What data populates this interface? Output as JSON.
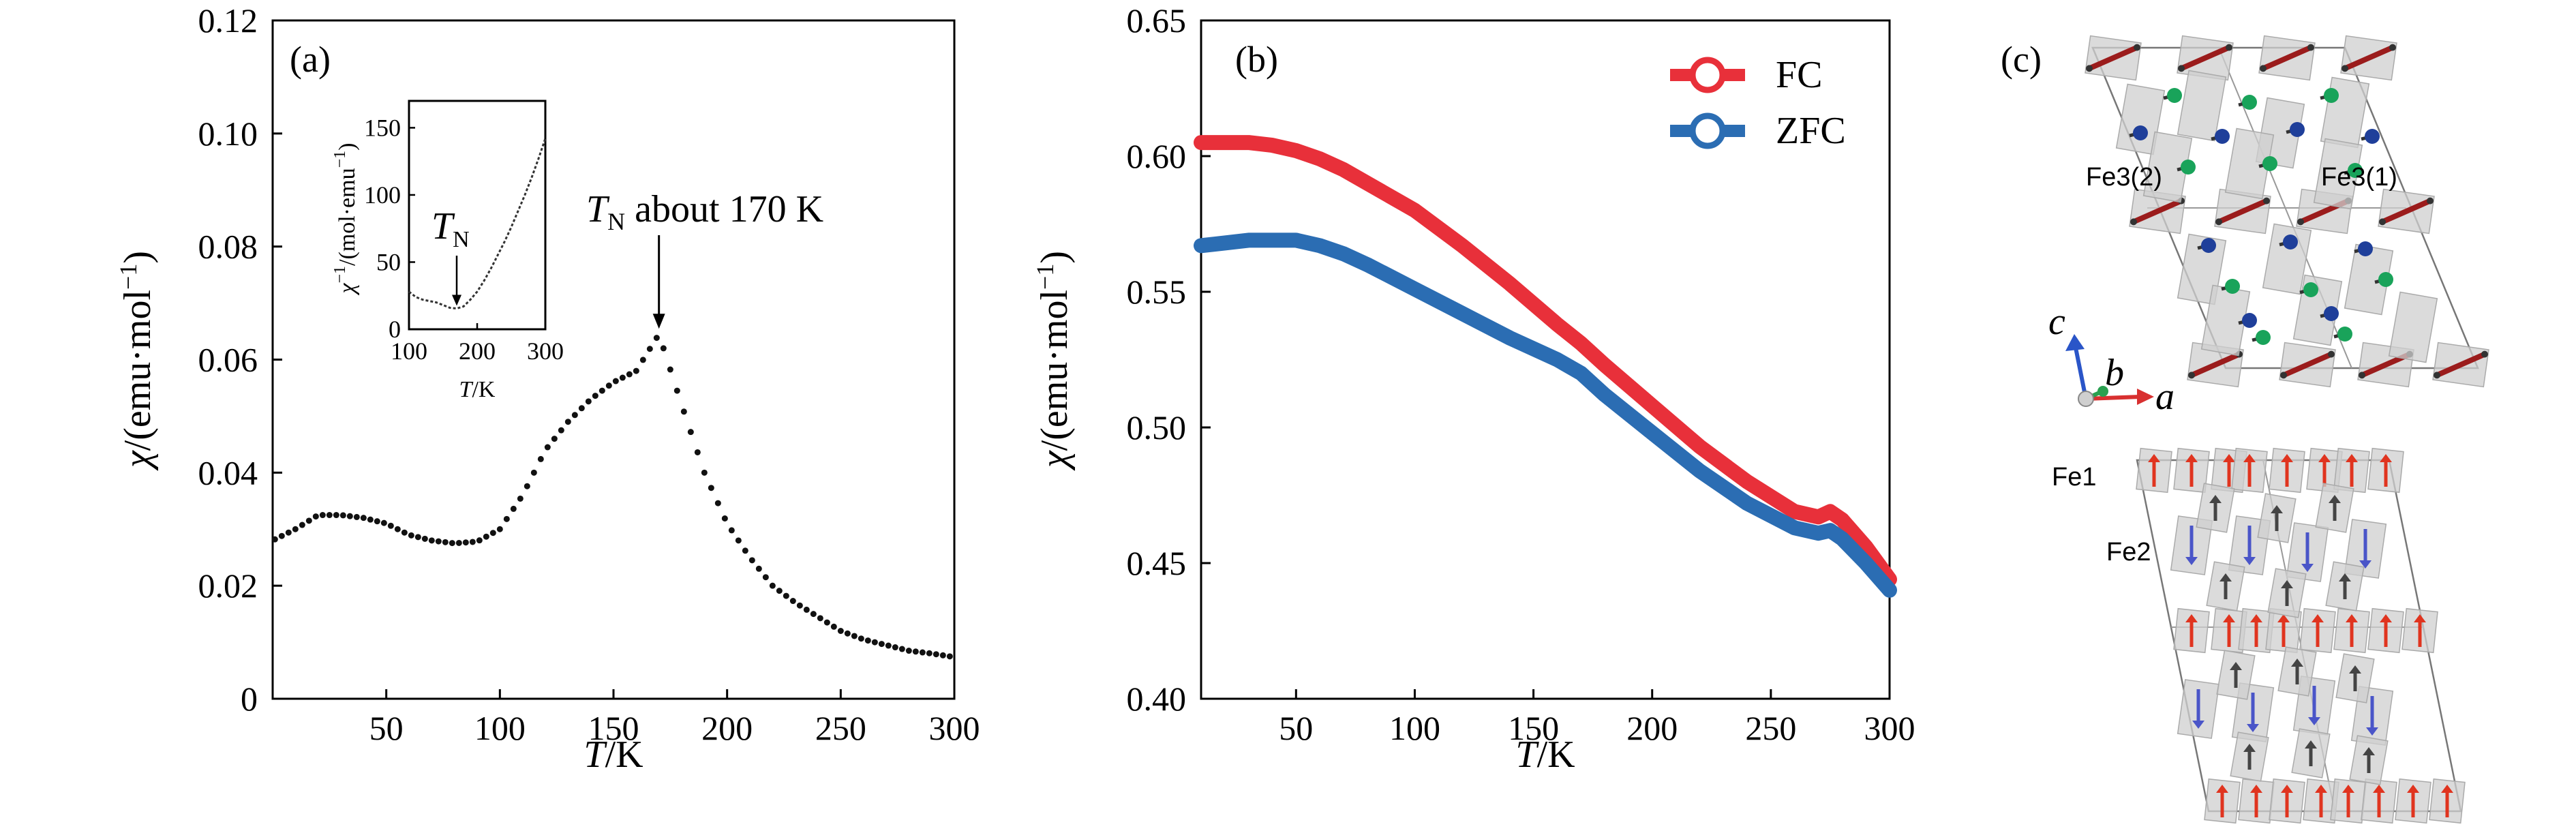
{
  "chart_data": [
    {
      "panel": "(a)",
      "type": "scatter",
      "xlabel": {
        "italic": "T",
        "rest": "/K"
      },
      "ylabel": {
        "italic": "χ",
        "rest": "/(emu·mol",
        "sup": "−1",
        "close": ")"
      },
      "xlim": [
        0,
        300
      ],
      "ylim": [
        0,
        0.12
      ],
      "xticks": [
        50,
        100,
        150,
        200,
        250,
        300
      ],
      "xtick_labels": [
        "50",
        "100",
        "150",
        "200",
        "250",
        "300"
      ],
      "yticks": [
        0,
        0.02,
        0.04,
        0.06,
        0.08,
        0.1,
        0.12
      ],
      "ytick_labels": [
        "0",
        "0.02",
        "0.04",
        "0.06",
        "0.08",
        "0.10",
        "0.12"
      ],
      "marker_color": "#111111",
      "curve_knots": [
        [
          0,
          0.028
        ],
        [
          10,
          0.03
        ],
        [
          20,
          0.0325
        ],
        [
          30,
          0.0325
        ],
        [
          40,
          0.032
        ],
        [
          50,
          0.031
        ],
        [
          60,
          0.029
        ],
        [
          70,
          0.028
        ],
        [
          80,
          0.0275
        ],
        [
          90,
          0.0278
        ],
        [
          100,
          0.03
        ],
        [
          110,
          0.036
        ],
        [
          120,
          0.044
        ],
        [
          130,
          0.049
        ],
        [
          140,
          0.053
        ],
        [
          150,
          0.056
        ],
        [
          160,
          0.058
        ],
        [
          170,
          0.0645
        ],
        [
          180,
          0.052
        ],
        [
          190,
          0.04
        ],
        [
          200,
          0.031
        ],
        [
          210,
          0.025
        ],
        [
          220,
          0.02
        ],
        [
          230,
          0.017
        ],
        [
          240,
          0.0145
        ],
        [
          250,
          0.012
        ],
        [
          260,
          0.0105
        ],
        [
          270,
          0.0095
        ],
        [
          280,
          0.0085
        ],
        [
          290,
          0.008
        ],
        [
          298,
          0.0075
        ]
      ],
      "point_spacing": 3,
      "annotation": {
        "italic": "T",
        "sub": "N",
        "text": " about 170 K",
        "x": 170,
        "y": 0.0645
      },
      "inset": {
        "xlabel": {
          "italic": "T",
          "rest": "/K"
        },
        "ylabel": {
          "italic": "χ",
          "sup": "−1",
          "rest": "/(mol·emu",
          "sup2": "−1",
          "close": ")"
        },
        "xlim": [
          100,
          300
        ],
        "ylim": [
          0,
          170
        ],
        "xticks": [
          100,
          200,
          300
        ],
        "xtick_labels": [
          "100",
          "200",
          "300"
        ],
        "yticks": [
          0,
          50,
          100,
          150
        ],
        "ytick_labels": [
          "0",
          "50",
          "100",
          "150"
        ],
        "curve_knots": [
          [
            100,
            28
          ],
          [
            110,
            24
          ],
          [
            120,
            22
          ],
          [
            130,
            21
          ],
          [
            140,
            20
          ],
          [
            150,
            18
          ],
          [
            160,
            16
          ],
          [
            170,
            15.5
          ],
          [
            180,
            17
          ],
          [
            190,
            22
          ],
          [
            200,
            28
          ],
          [
            210,
            36
          ],
          [
            220,
            45
          ],
          [
            230,
            55
          ],
          [
            240,
            65
          ],
          [
            250,
            76
          ],
          [
            260,
            88
          ],
          [
            270,
            100
          ],
          [
            280,
            113
          ],
          [
            290,
            127
          ],
          [
            300,
            142
          ]
        ],
        "annotation": {
          "italic": "T",
          "sub": "N",
          "x": 170,
          "y": 15.5
        }
      }
    },
    {
      "panel": "(b)",
      "type": "line",
      "xlabel": {
        "italic": "T",
        "rest": "/K"
      },
      "ylabel": {
        "italic": "χ",
        "rest": "/(emu·mol",
        "sup": "−1",
        "close": ")"
      },
      "xlim": [
        10,
        300
      ],
      "ylim": [
        0.4,
        0.65
      ],
      "xticks": [
        50,
        100,
        150,
        200,
        250,
        300
      ],
      "xtick_labels": [
        "50",
        "100",
        "150",
        "200",
        "250",
        "300"
      ],
      "yticks": [
        0.4,
        0.45,
        0.5,
        0.55,
        0.6,
        0.65
      ],
      "ytick_labels": [
        "0.40",
        "0.45",
        "0.50",
        "0.55",
        "0.60",
        "0.65"
      ],
      "legend_position": "top-right",
      "series": [
        {
          "name": "FC",
          "color": "#e8303a",
          "x": [
            10,
            20,
            30,
            40,
            50,
            60,
            70,
            80,
            100,
            120,
            140,
            160,
            170,
            180,
            200,
            220,
            240,
            260,
            270,
            275,
            280,
            290,
            300
          ],
          "y": [
            0.605,
            0.605,
            0.605,
            0.604,
            0.602,
            0.599,
            0.595,
            0.59,
            0.58,
            0.567,
            0.553,
            0.538,
            0.531,
            0.523,
            0.508,
            0.493,
            0.48,
            0.469,
            0.467,
            0.469,
            0.466,
            0.456,
            0.444
          ]
        },
        {
          "name": "ZFC",
          "color": "#2b6db3",
          "x": [
            10,
            20,
            30,
            40,
            50,
            60,
            70,
            80,
            100,
            120,
            140,
            160,
            170,
            180,
            200,
            220,
            240,
            260,
            270,
            275,
            280,
            290,
            300
          ],
          "y": [
            0.567,
            0.568,
            0.569,
            0.569,
            0.569,
            0.567,
            0.564,
            0.56,
            0.551,
            0.542,
            0.533,
            0.525,
            0.52,
            0.512,
            0.498,
            0.484,
            0.472,
            0.463,
            0.461,
            0.462,
            0.459,
            0.45,
            0.44
          ]
        }
      ]
    },
    {
      "panel": "(c)",
      "type": "other",
      "labels": {
        "fe3_2": "Fe3(2)",
        "fe3_1": "Fe3(1)",
        "fe1": "Fe1",
        "fe2": "Fe2",
        "axis_c": "c",
        "axis_b": "b",
        "axis_a": "a"
      },
      "colors": {
        "fe3": "#1aa06e",
        "fe1": "#d83a5a",
        "fe2": "#3a55a0",
        "arrow_red": "#e0341f",
        "arrow_blue": "#4a55c8",
        "arrow_dark": "#444444",
        "atom_green": "#19a35a",
        "atom_blue": "#1f3f9a",
        "bar": "#9b1c1c"
      }
    }
  ]
}
